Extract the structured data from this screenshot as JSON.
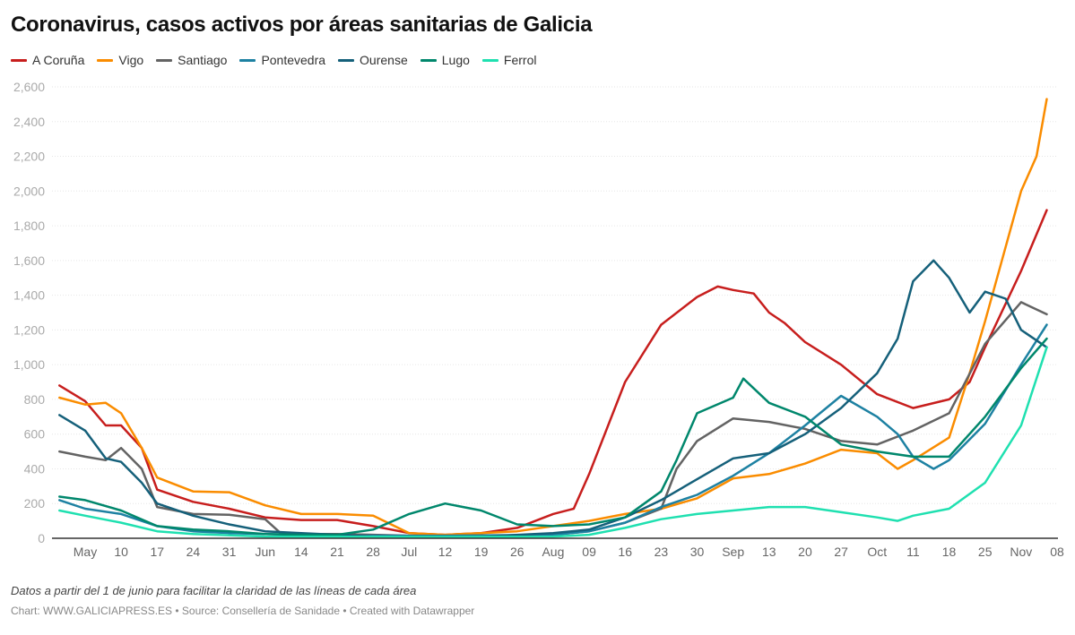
{
  "chart_data": {
    "type": "line",
    "title": "Coronavirus, casos activos por áreas sanitarias de Galicia",
    "ylim": [
      0,
      2600
    ],
    "yticks": [
      0,
      200,
      400,
      600,
      800,
      1000,
      1200,
      1400,
      1600,
      1800,
      2000,
      2200,
      2400,
      2600
    ],
    "ytick_labels": [
      "0",
      "200",
      "400",
      "600",
      "800",
      "1,000",
      "1,200",
      "1,400",
      "1,600",
      "1,800",
      "2,000",
      "2,200",
      "2,400",
      "2,600"
    ],
    "xlim": [
      "2020-04-27",
      "2020-11-08"
    ],
    "xticks": [
      [
        "2020-05-03",
        "May"
      ],
      [
        "2020-05-10",
        "10"
      ],
      [
        "2020-05-17",
        "17"
      ],
      [
        "2020-05-24",
        "24"
      ],
      [
        "2020-05-31",
        "31"
      ],
      [
        "2020-06-07",
        "Jun"
      ],
      [
        "2020-06-14",
        "14"
      ],
      [
        "2020-06-21",
        "21"
      ],
      [
        "2020-06-28",
        "28"
      ],
      [
        "2020-07-05",
        "Jul"
      ],
      [
        "2020-07-12",
        "12"
      ],
      [
        "2020-07-19",
        "19"
      ],
      [
        "2020-07-26",
        "26"
      ],
      [
        "2020-08-02",
        "Aug"
      ],
      [
        "2020-08-09",
        "09"
      ],
      [
        "2020-08-16",
        "16"
      ],
      [
        "2020-08-23",
        "23"
      ],
      [
        "2020-08-30",
        "30"
      ],
      [
        "2020-09-06",
        "Sep"
      ],
      [
        "2020-09-13",
        "13"
      ],
      [
        "2020-09-20",
        "20"
      ],
      [
        "2020-09-27",
        "27"
      ],
      [
        "2020-10-04",
        "Oct"
      ],
      [
        "2020-10-11",
        "11"
      ],
      [
        "2020-10-18",
        "18"
      ],
      [
        "2020-10-25",
        "25"
      ],
      [
        "2020-11-01",
        "Nov"
      ],
      [
        "2020-11-08",
        "08"
      ]
    ],
    "grid": "horizontal",
    "legend": "top-left",
    "series": [
      {
        "name": "A Coruña",
        "color": "#c71e1d",
        "points": [
          [
            "2020-04-28",
            880
          ],
          [
            "2020-05-03",
            790
          ],
          [
            "2020-05-07",
            650
          ],
          [
            "2020-05-10",
            650
          ],
          [
            "2020-05-14",
            520
          ],
          [
            "2020-05-17",
            280
          ],
          [
            "2020-05-24",
            210
          ],
          [
            "2020-05-31",
            170
          ],
          [
            "2020-06-07",
            120
          ],
          [
            "2020-06-14",
            105
          ],
          [
            "2020-06-21",
            105
          ],
          [
            "2020-06-28",
            70
          ],
          [
            "2020-07-05",
            30
          ],
          [
            "2020-07-12",
            20
          ],
          [
            "2020-07-19",
            30
          ],
          [
            "2020-07-26",
            60
          ],
          [
            "2020-08-02",
            140
          ],
          [
            "2020-08-06",
            170
          ],
          [
            "2020-08-09",
            370
          ],
          [
            "2020-08-16",
            900
          ],
          [
            "2020-08-23",
            1230
          ],
          [
            "2020-08-30",
            1390
          ],
          [
            "2020-09-03",
            1450
          ],
          [
            "2020-09-06",
            1430
          ],
          [
            "2020-09-10",
            1410
          ],
          [
            "2020-09-13",
            1300
          ],
          [
            "2020-09-16",
            1240
          ],
          [
            "2020-09-20",
            1130
          ],
          [
            "2020-09-27",
            1000
          ],
          [
            "2020-10-04",
            830
          ],
          [
            "2020-10-11",
            750
          ],
          [
            "2020-10-18",
            800
          ],
          [
            "2020-10-22",
            900
          ],
          [
            "2020-10-25",
            1100
          ],
          [
            "2020-11-01",
            1540
          ],
          [
            "2020-11-06",
            1890
          ]
        ]
      },
      {
        "name": "Vigo",
        "color": "#fa8c00",
        "points": [
          [
            "2020-04-28",
            810
          ],
          [
            "2020-05-03",
            770
          ],
          [
            "2020-05-07",
            780
          ],
          [
            "2020-05-10",
            720
          ],
          [
            "2020-05-14",
            520
          ],
          [
            "2020-05-17",
            350
          ],
          [
            "2020-05-24",
            270
          ],
          [
            "2020-05-31",
            265
          ],
          [
            "2020-06-07",
            190
          ],
          [
            "2020-06-14",
            140
          ],
          [
            "2020-06-21",
            140
          ],
          [
            "2020-06-28",
            130
          ],
          [
            "2020-07-05",
            30
          ],
          [
            "2020-07-12",
            20
          ],
          [
            "2020-07-19",
            30
          ],
          [
            "2020-07-26",
            40
          ],
          [
            "2020-08-02",
            70
          ],
          [
            "2020-08-09",
            100
          ],
          [
            "2020-08-16",
            140
          ],
          [
            "2020-08-23",
            170
          ],
          [
            "2020-08-30",
            230
          ],
          [
            "2020-09-06",
            345
          ],
          [
            "2020-09-13",
            370
          ],
          [
            "2020-09-20",
            430
          ],
          [
            "2020-09-27",
            510
          ],
          [
            "2020-10-04",
            490
          ],
          [
            "2020-10-08",
            400
          ],
          [
            "2020-10-11",
            450
          ],
          [
            "2020-10-18",
            580
          ],
          [
            "2020-10-22",
            950
          ],
          [
            "2020-10-25",
            1250
          ],
          [
            "2020-11-01",
            2000
          ],
          [
            "2020-11-04",
            2200
          ],
          [
            "2020-11-06",
            2530
          ]
        ]
      },
      {
        "name": "Santiago",
        "color": "#636363",
        "points": [
          [
            "2020-04-28",
            500
          ],
          [
            "2020-05-03",
            470
          ],
          [
            "2020-05-07",
            450
          ],
          [
            "2020-05-10",
            520
          ],
          [
            "2020-05-14",
            400
          ],
          [
            "2020-05-17",
            180
          ],
          [
            "2020-05-24",
            140
          ],
          [
            "2020-05-31",
            135
          ],
          [
            "2020-06-07",
            110
          ],
          [
            "2020-06-10",
            30
          ],
          [
            "2020-06-14",
            25
          ],
          [
            "2020-06-21",
            25
          ],
          [
            "2020-06-28",
            20
          ],
          [
            "2020-07-12",
            10
          ],
          [
            "2020-07-26",
            10
          ],
          [
            "2020-08-02",
            20
          ],
          [
            "2020-08-09",
            40
          ],
          [
            "2020-08-16",
            90
          ],
          [
            "2020-08-23",
            170
          ],
          [
            "2020-08-26",
            400
          ],
          [
            "2020-08-30",
            560
          ],
          [
            "2020-09-06",
            690
          ],
          [
            "2020-09-13",
            670
          ],
          [
            "2020-09-20",
            630
          ],
          [
            "2020-09-27",
            560
          ],
          [
            "2020-10-04",
            540
          ],
          [
            "2020-10-11",
            620
          ],
          [
            "2020-10-18",
            720
          ],
          [
            "2020-10-25",
            1120
          ],
          [
            "2020-11-01",
            1360
          ],
          [
            "2020-11-06",
            1290
          ]
        ]
      },
      {
        "name": "Pontevedra",
        "color": "#1d81a2",
        "points": [
          [
            "2020-04-28",
            220
          ],
          [
            "2020-05-03",
            170
          ],
          [
            "2020-05-10",
            140
          ],
          [
            "2020-05-17",
            70
          ],
          [
            "2020-05-24",
            40
          ],
          [
            "2020-05-31",
            30
          ],
          [
            "2020-06-07",
            25
          ],
          [
            "2020-06-21",
            15
          ],
          [
            "2020-07-12",
            15
          ],
          [
            "2020-08-02",
            20
          ],
          [
            "2020-08-09",
            40
          ],
          [
            "2020-08-16",
            90
          ],
          [
            "2020-08-23",
            180
          ],
          [
            "2020-08-30",
            250
          ],
          [
            "2020-09-06",
            360
          ],
          [
            "2020-09-13",
            490
          ],
          [
            "2020-09-20",
            650
          ],
          [
            "2020-09-27",
            820
          ],
          [
            "2020-10-04",
            700
          ],
          [
            "2020-10-08",
            600
          ],
          [
            "2020-10-11",
            470
          ],
          [
            "2020-10-15",
            400
          ],
          [
            "2020-10-18",
            450
          ],
          [
            "2020-10-25",
            660
          ],
          [
            "2020-11-01",
            1000
          ],
          [
            "2020-11-06",
            1230
          ]
        ]
      },
      {
        "name": "Ourense",
        "color": "#15607a",
        "points": [
          [
            "2020-04-28",
            710
          ],
          [
            "2020-05-03",
            620
          ],
          [
            "2020-05-07",
            460
          ],
          [
            "2020-05-10",
            440
          ],
          [
            "2020-05-14",
            320
          ],
          [
            "2020-05-17",
            200
          ],
          [
            "2020-05-24",
            130
          ],
          [
            "2020-05-31",
            80
          ],
          [
            "2020-06-07",
            40
          ],
          [
            "2020-06-14",
            30
          ],
          [
            "2020-06-21",
            20
          ],
          [
            "2020-06-28",
            10
          ],
          [
            "2020-07-19",
            10
          ],
          [
            "2020-08-02",
            30
          ],
          [
            "2020-08-09",
            50
          ],
          [
            "2020-08-16",
            120
          ],
          [
            "2020-08-23",
            220
          ],
          [
            "2020-08-30",
            340
          ],
          [
            "2020-09-06",
            460
          ],
          [
            "2020-09-13",
            490
          ],
          [
            "2020-09-20",
            600
          ],
          [
            "2020-09-27",
            750
          ],
          [
            "2020-10-04",
            950
          ],
          [
            "2020-10-08",
            1150
          ],
          [
            "2020-10-11",
            1480
          ],
          [
            "2020-10-15",
            1600
          ],
          [
            "2020-10-18",
            1500
          ],
          [
            "2020-10-22",
            1300
          ],
          [
            "2020-10-25",
            1420
          ],
          [
            "2020-10-29",
            1380
          ],
          [
            "2020-11-01",
            1200
          ],
          [
            "2020-11-06",
            1100
          ]
        ]
      },
      {
        "name": "Lugo",
        "color": "#00876c",
        "points": [
          [
            "2020-04-28",
            240
          ],
          [
            "2020-05-03",
            220
          ],
          [
            "2020-05-10",
            160
          ],
          [
            "2020-05-17",
            70
          ],
          [
            "2020-05-24",
            50
          ],
          [
            "2020-05-31",
            40
          ],
          [
            "2020-06-07",
            25
          ],
          [
            "2020-06-14",
            20
          ],
          [
            "2020-06-21",
            20
          ],
          [
            "2020-06-28",
            50
          ],
          [
            "2020-07-05",
            140
          ],
          [
            "2020-07-12",
            200
          ],
          [
            "2020-07-19",
            160
          ],
          [
            "2020-07-26",
            80
          ],
          [
            "2020-08-02",
            70
          ],
          [
            "2020-08-09",
            80
          ],
          [
            "2020-08-16",
            120
          ],
          [
            "2020-08-23",
            270
          ],
          [
            "2020-08-26",
            450
          ],
          [
            "2020-08-30",
            720
          ],
          [
            "2020-09-06",
            810
          ],
          [
            "2020-09-08",
            920
          ],
          [
            "2020-09-13",
            780
          ],
          [
            "2020-09-20",
            700
          ],
          [
            "2020-09-27",
            540
          ],
          [
            "2020-10-04",
            500
          ],
          [
            "2020-10-11",
            470
          ],
          [
            "2020-10-18",
            470
          ],
          [
            "2020-10-25",
            700
          ],
          [
            "2020-11-01",
            980
          ],
          [
            "2020-11-06",
            1150
          ]
        ]
      },
      {
        "name": "Ferrol",
        "color": "#1fe0b0",
        "points": [
          [
            "2020-04-28",
            160
          ],
          [
            "2020-05-03",
            130
          ],
          [
            "2020-05-10",
            90
          ],
          [
            "2020-05-17",
            40
          ],
          [
            "2020-05-24",
            25
          ],
          [
            "2020-06-07",
            10
          ],
          [
            "2020-07-12",
            8
          ],
          [
            "2020-08-02",
            10
          ],
          [
            "2020-08-09",
            20
          ],
          [
            "2020-08-16",
            60
          ],
          [
            "2020-08-23",
            110
          ],
          [
            "2020-08-30",
            140
          ],
          [
            "2020-09-06",
            160
          ],
          [
            "2020-09-13",
            180
          ],
          [
            "2020-09-20",
            180
          ],
          [
            "2020-09-27",
            150
          ],
          [
            "2020-10-04",
            120
          ],
          [
            "2020-10-08",
            100
          ],
          [
            "2020-10-11",
            130
          ],
          [
            "2020-10-18",
            170
          ],
          [
            "2020-10-25",
            320
          ],
          [
            "2020-11-01",
            650
          ],
          [
            "2020-11-06",
            1100
          ]
        ]
      }
    ]
  },
  "note": "Datos a partir del 1 de junio para facilitar la claridad de las líneas de cada área",
  "credit": "Chart: WWW.GALICIAPRESS.ES • Source: Consellería de Sanidade • Created with Datawrapper"
}
